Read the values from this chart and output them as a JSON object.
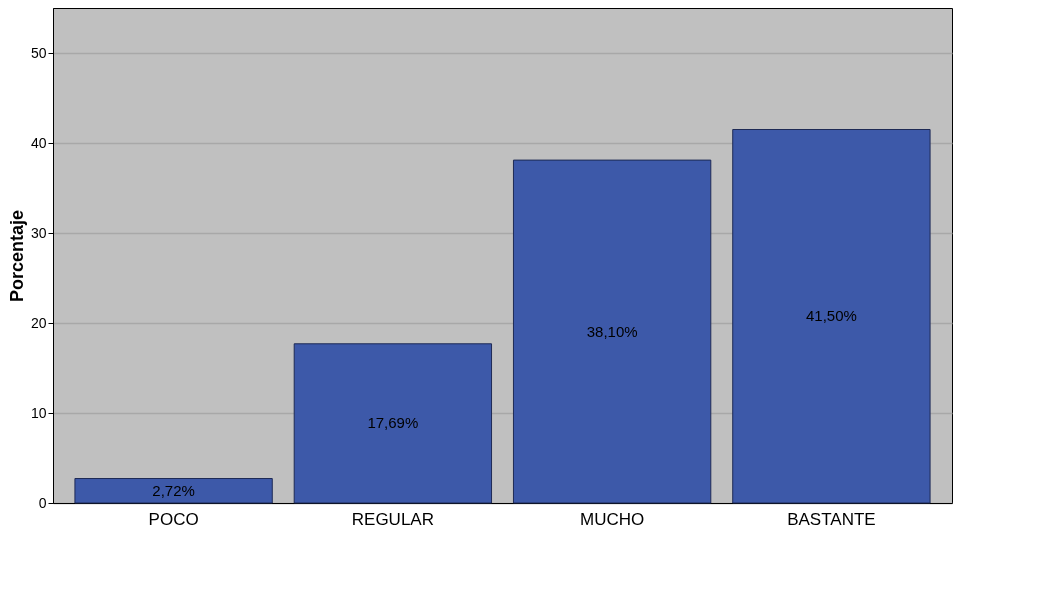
{
  "chart_data": {
    "type": "bar",
    "ylabel": "Porcentaje",
    "categories": [
      "POCO",
      "REGULAR",
      "MUCHO",
      "BASTANTE"
    ],
    "values": [
      2.72,
      17.69,
      38.1,
      41.5
    ],
    "value_labels": [
      "2,72%",
      "17,69%",
      "38,10%",
      "41,50%"
    ],
    "color": "#3d59a9",
    "ylim": [
      0,
      55
    ],
    "yticks": [
      0,
      10,
      20,
      30,
      40,
      50
    ],
    "grid": "y"
  }
}
